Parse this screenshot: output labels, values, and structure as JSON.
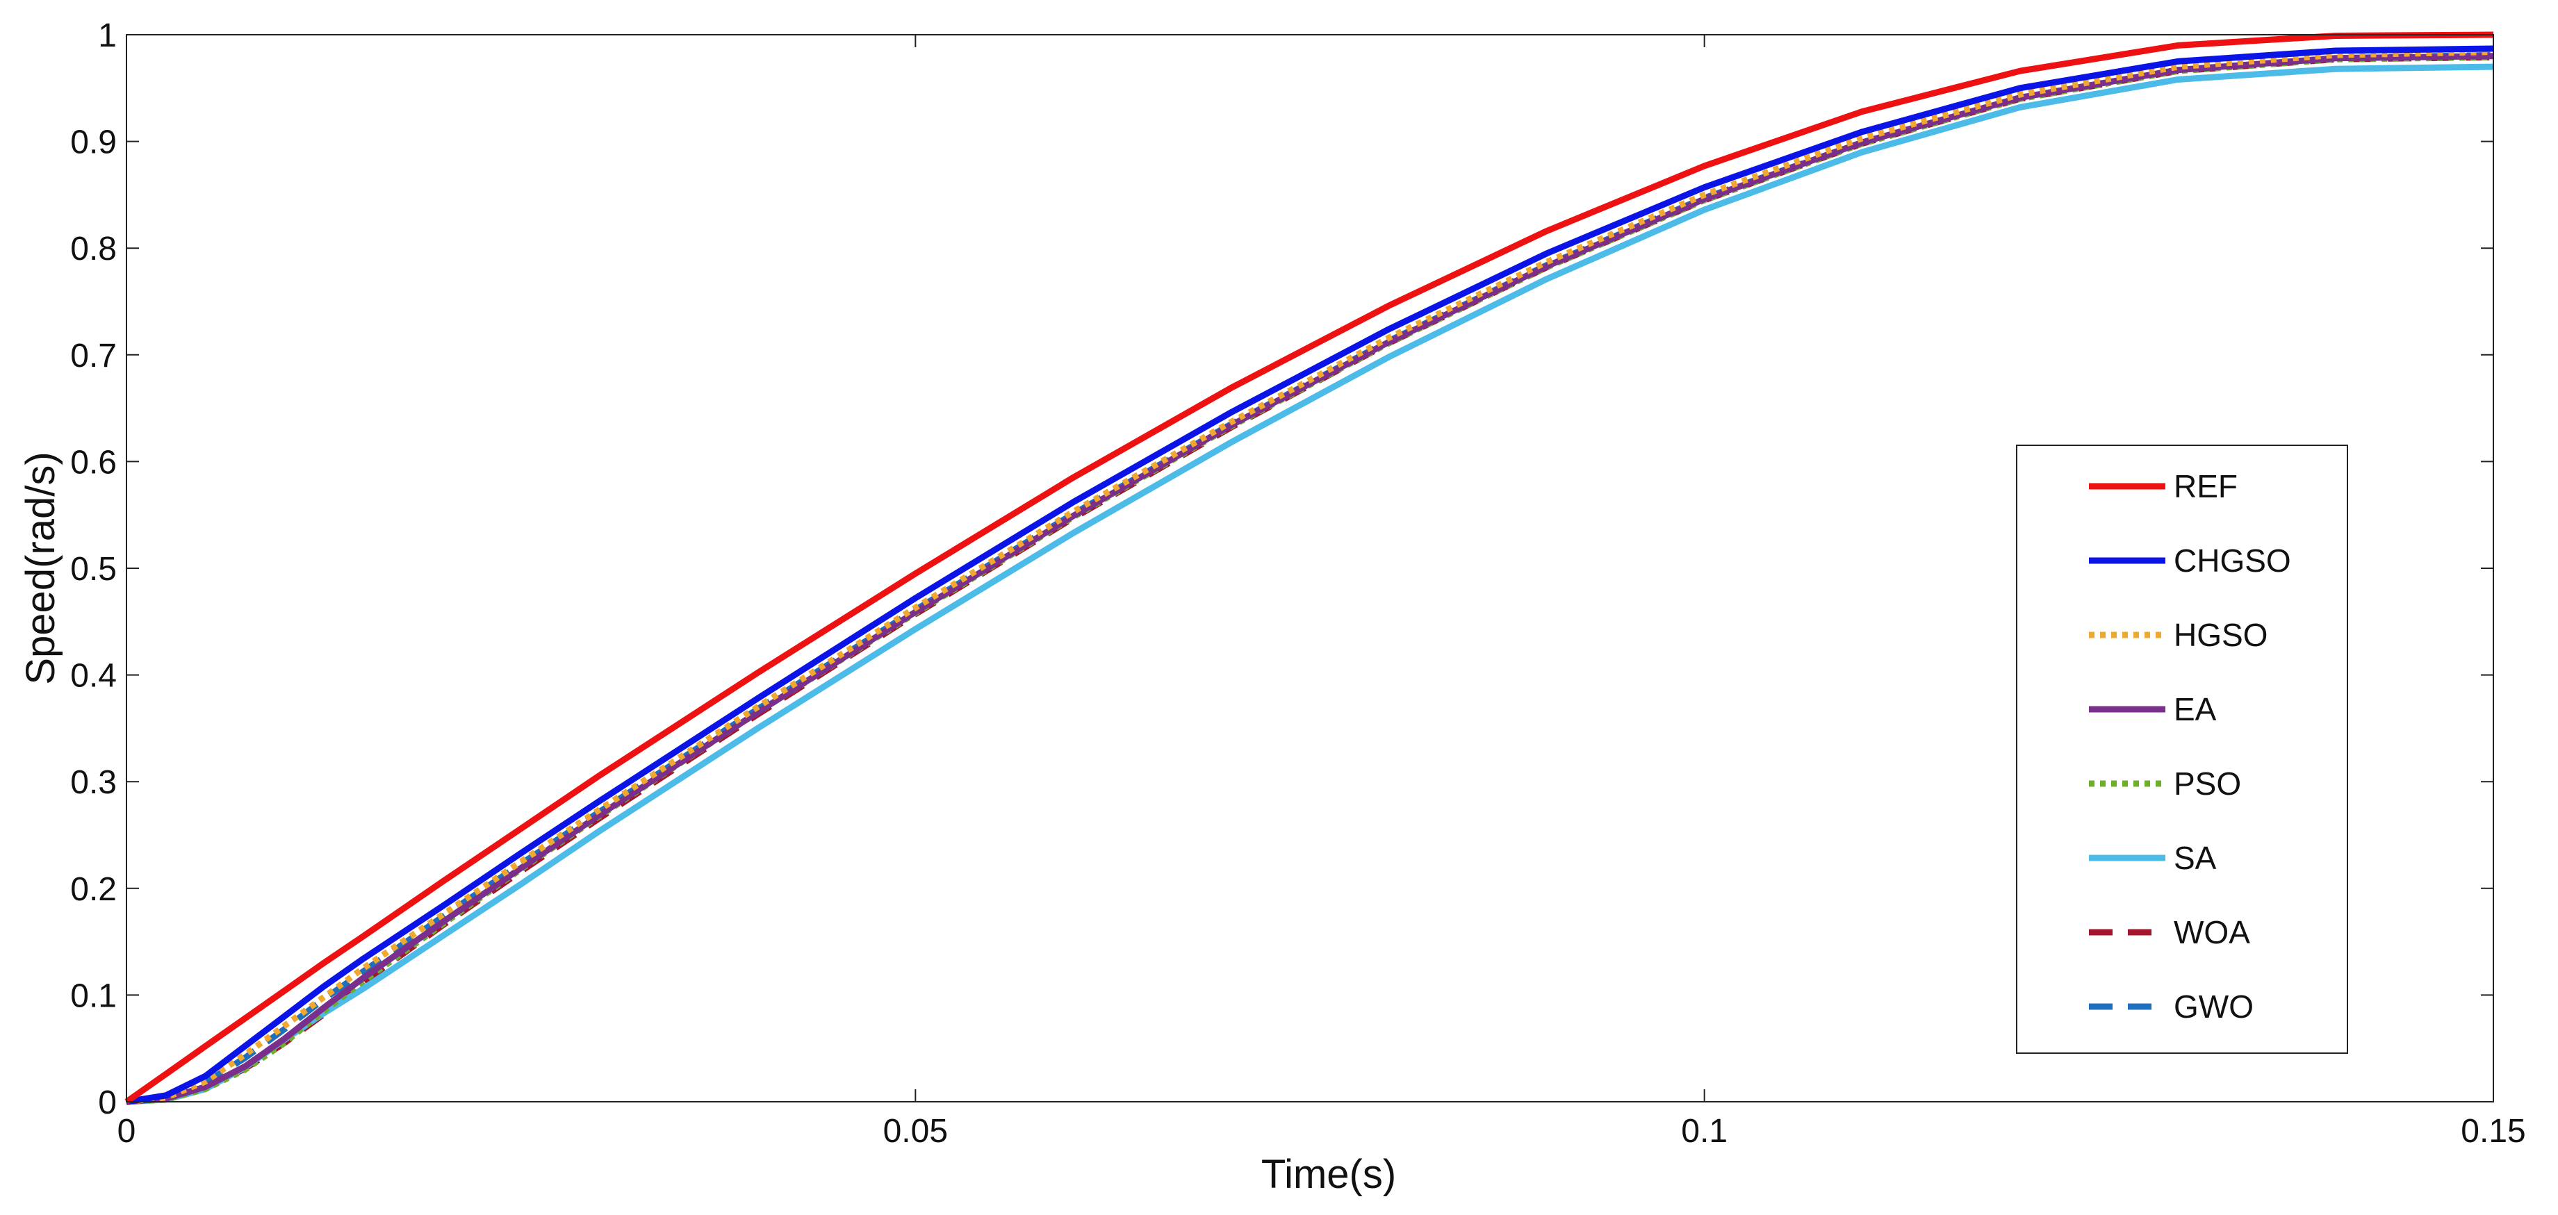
{
  "chart_data": {
    "type": "line",
    "xlabel": "Time(s)",
    "ylabel": "Speed(rad/s)",
    "xlim": [
      0,
      0.15
    ],
    "ylim": [
      0,
      1
    ],
    "xticks": [
      0,
      0.05,
      0.1,
      0.15
    ],
    "xtick_labels": [
      "0",
      "0.05",
      "0.1",
      "0.15"
    ],
    "yticks": [
      0,
      0.1,
      0.2,
      0.3,
      0.4,
      0.5,
      0.6,
      0.7,
      0.8,
      0.9,
      1
    ],
    "ytick_labels": [
      "0",
      "0.1",
      "0.2",
      "0.3",
      "0.4",
      "0.5",
      "0.6",
      "0.7",
      "0.8",
      "0.9",
      "1"
    ],
    "grid": false,
    "legend_position": "right",
    "x": [
      0,
      0.0025,
      0.005,
      0.0075,
      0.01,
      0.0125,
      0.015,
      0.02,
      0.025,
      0.03,
      0.04,
      0.05,
      0.06,
      0.07,
      0.08,
      0.09,
      0.1,
      0.11,
      0.12,
      0.13,
      0.14,
      0.15
    ],
    "series": [
      {
        "name": "REF",
        "color": "#ee1111",
        "dash": "solid",
        "values": [
          0,
          0.026,
          0.052,
          0.078,
          0.104,
          0.13,
          0.155,
          0.206,
          0.256,
          0.306,
          0.402,
          0.495,
          0.585,
          0.669,
          0.746,
          0.816,
          0.877,
          0.928,
          0.966,
          0.99,
          0.999,
          1.0
        ]
      },
      {
        "name": "CHGSO",
        "color": "#0a14e6",
        "dash": "solid",
        "values": [
          0,
          0.006,
          0.024,
          0.052,
          0.08,
          0.108,
          0.134,
          0.183,
          0.233,
          0.282,
          0.378,
          0.472,
          0.562,
          0.646,
          0.724,
          0.795,
          0.857,
          0.909,
          0.95,
          0.975,
          0.985,
          0.987
        ]
      },
      {
        "name": "HGSO",
        "color": "#f0a830",
        "dash": "dot",
        "values": [
          0,
          0.004,
          0.019,
          0.044,
          0.071,
          0.098,
          0.125,
          0.175,
          0.225,
          0.274,
          0.37,
          0.463,
          0.553,
          0.637,
          0.716,
          0.787,
          0.85,
          0.903,
          0.944,
          0.97,
          0.981,
          0.984
        ]
      },
      {
        "name": "EA",
        "color": "#7a2f8c",
        "dash": "solid",
        "values": [
          0,
          0.003,
          0.014,
          0.033,
          0.059,
          0.088,
          0.116,
          0.168,
          0.219,
          0.269,
          0.365,
          0.459,
          0.549,
          0.634,
          0.712,
          0.783,
          0.846,
          0.899,
          0.941,
          0.967,
          0.978,
          0.98
        ]
      },
      {
        "name": "PSO",
        "color": "#6fae2a",
        "dash": "dot",
        "values": [
          0,
          0.002,
          0.012,
          0.03,
          0.055,
          0.085,
          0.113,
          0.166,
          0.218,
          0.268,
          0.365,
          0.458,
          0.548,
          0.633,
          0.711,
          0.782,
          0.845,
          0.898,
          0.94,
          0.966,
          0.977,
          0.979
        ]
      },
      {
        "name": "SA",
        "color": "#4cbbe8",
        "dash": "solid",
        "values": [
          0,
          0.002,
          0.012,
          0.032,
          0.058,
          0.083,
          0.106,
          0.155,
          0.204,
          0.254,
          0.35,
          0.443,
          0.533,
          0.618,
          0.698,
          0.771,
          0.836,
          0.89,
          0.932,
          0.958,
          0.968,
          0.97
        ]
      },
      {
        "name": "WOA",
        "color": "#a3162e",
        "dash": "dash",
        "values": [
          0,
          0.003,
          0.013,
          0.031,
          0.055,
          0.082,
          0.112,
          0.165,
          0.216,
          0.266,
          0.363,
          0.457,
          0.547,
          0.632,
          0.711,
          0.782,
          0.845,
          0.898,
          0.94,
          0.966,
          0.977,
          0.979
        ]
      },
      {
        "name": "GWO",
        "color": "#1f6fbf",
        "dash": "dash",
        "values": [
          0,
          0.004,
          0.018,
          0.041,
          0.068,
          0.096,
          0.122,
          0.173,
          0.223,
          0.272,
          0.368,
          0.461,
          0.551,
          0.635,
          0.713,
          0.784,
          0.847,
          0.899,
          0.941,
          0.967,
          0.978,
          0.981
        ]
      }
    ]
  }
}
